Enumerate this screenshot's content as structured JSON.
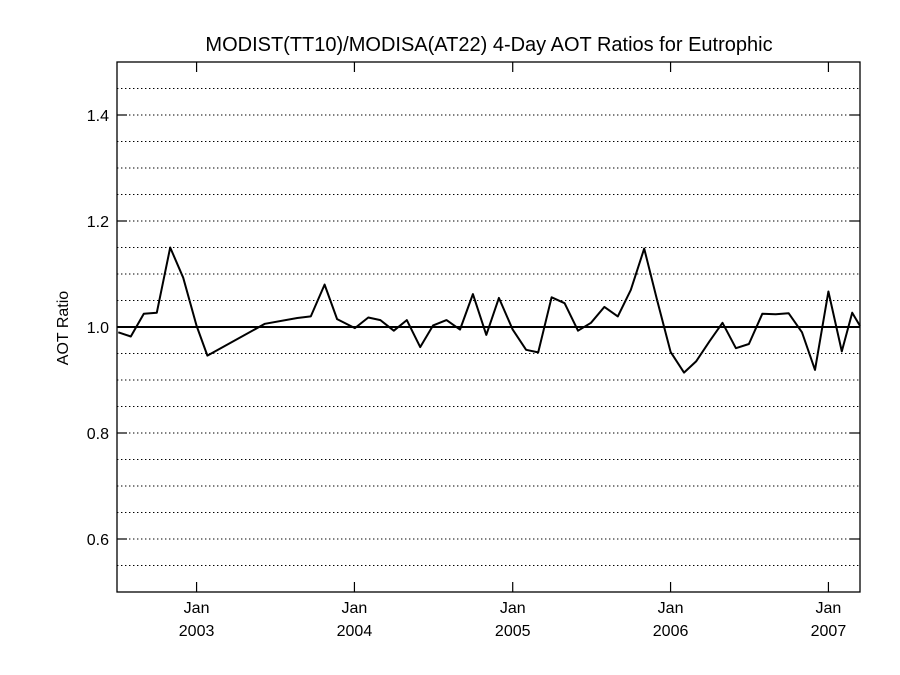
{
  "chart_data": {
    "type": "line",
    "title": "MODIST(TT10)/MODISA(AT22) 4-Day AOT Ratios for Eutrophic",
    "xlabel": "",
    "ylabel": "AOT Ratio",
    "xlim": [
      "2002-07-01",
      "2007-03-15"
    ],
    "ylim": [
      0.5,
      1.5
    ],
    "x_ticks": [
      {
        "date": "2003-01-01",
        "label_top": "Jan",
        "label_bottom": "2003"
      },
      {
        "date": "2004-01-01",
        "label_top": "Jan",
        "label_bottom": "2004"
      },
      {
        "date": "2005-01-01",
        "label_top": "Jan",
        "label_bottom": "2005"
      },
      {
        "date": "2006-01-01",
        "label_top": "Jan",
        "label_bottom": "2006"
      },
      {
        "date": "2007-01-01",
        "label_top": "Jan",
        "label_bottom": "2007"
      }
    ],
    "y_ticks": [
      0.6,
      0.8,
      1.0,
      1.2,
      1.4
    ],
    "y_tick_labels": [
      "0.6",
      "0.8",
      "1.0",
      "1.2",
      "1.4"
    ],
    "grid": "horizontal dotted every 0.05",
    "reference_line": 1.0,
    "series": [
      {
        "color": "#000000",
        "points": [
          [
            "2002-07-04",
            0.99
          ],
          [
            "2002-08-02",
            0.982
          ],
          [
            "2002-09-01",
            1.025
          ],
          [
            "2002-10-01",
            1.027
          ],
          [
            "2002-11-01",
            1.15
          ],
          [
            "2002-12-01",
            1.093
          ],
          [
            "2003-01-01",
            1.002
          ],
          [
            "2003-01-26",
            0.946
          ],
          [
            "2003-06-08",
            1.006
          ],
          [
            "2003-08-22",
            1.017
          ],
          [
            "2003-09-22",
            1.02
          ],
          [
            "2003-10-24",
            1.08
          ],
          [
            "2003-11-22",
            1.015
          ],
          [
            "2004-01-02",
            0.998
          ],
          [
            "2004-02-02",
            1.018
          ],
          [
            "2004-03-01",
            1.013
          ],
          [
            "2004-04-01",
            0.993
          ],
          [
            "2004-05-01",
            1.013
          ],
          [
            "2004-06-01",
            0.962
          ],
          [
            "2004-07-01",
            1.003
          ],
          [
            "2004-08-01",
            1.013
          ],
          [
            "2004-09-01",
            0.995
          ],
          [
            "2004-10-01",
            1.062
          ],
          [
            "2004-11-01",
            0.985
          ],
          [
            "2004-11-30",
            1.055
          ],
          [
            "2005-01-01",
            0.995
          ],
          [
            "2005-02-01",
            0.957
          ],
          [
            "2005-03-01",
            0.952
          ],
          [
            "2005-04-01",
            1.056
          ],
          [
            "2005-05-01",
            1.045
          ],
          [
            "2005-06-01",
            0.993
          ],
          [
            "2005-07-01",
            1.008
          ],
          [
            "2005-08-01",
            1.038
          ],
          [
            "2005-09-01",
            1.02
          ],
          [
            "2005-10-01",
            1.07
          ],
          [
            "2005-11-01",
            1.148
          ],
          [
            "2005-12-01",
            1.05
          ],
          [
            "2006-01-01",
            0.953
          ],
          [
            "2006-02-01",
            0.914
          ],
          [
            "2006-03-01",
            0.935
          ],
          [
            "2006-04-01",
            0.973
          ],
          [
            "2006-05-01",
            1.008
          ],
          [
            "2006-06-01",
            0.96
          ],
          [
            "2006-07-01",
            0.968
          ],
          [
            "2006-08-01",
            1.025
          ],
          [
            "2006-09-01",
            1.024
          ],
          [
            "2006-10-01",
            1.026
          ],
          [
            "2006-11-01",
            0.99
          ],
          [
            "2006-12-01",
            0.919
          ],
          [
            "2007-01-01",
            1.067
          ],
          [
            "2007-02-01",
            0.954
          ],
          [
            "2007-02-25",
            1.027
          ],
          [
            "2007-03-15",
            1.002
          ]
        ]
      }
    ]
  }
}
